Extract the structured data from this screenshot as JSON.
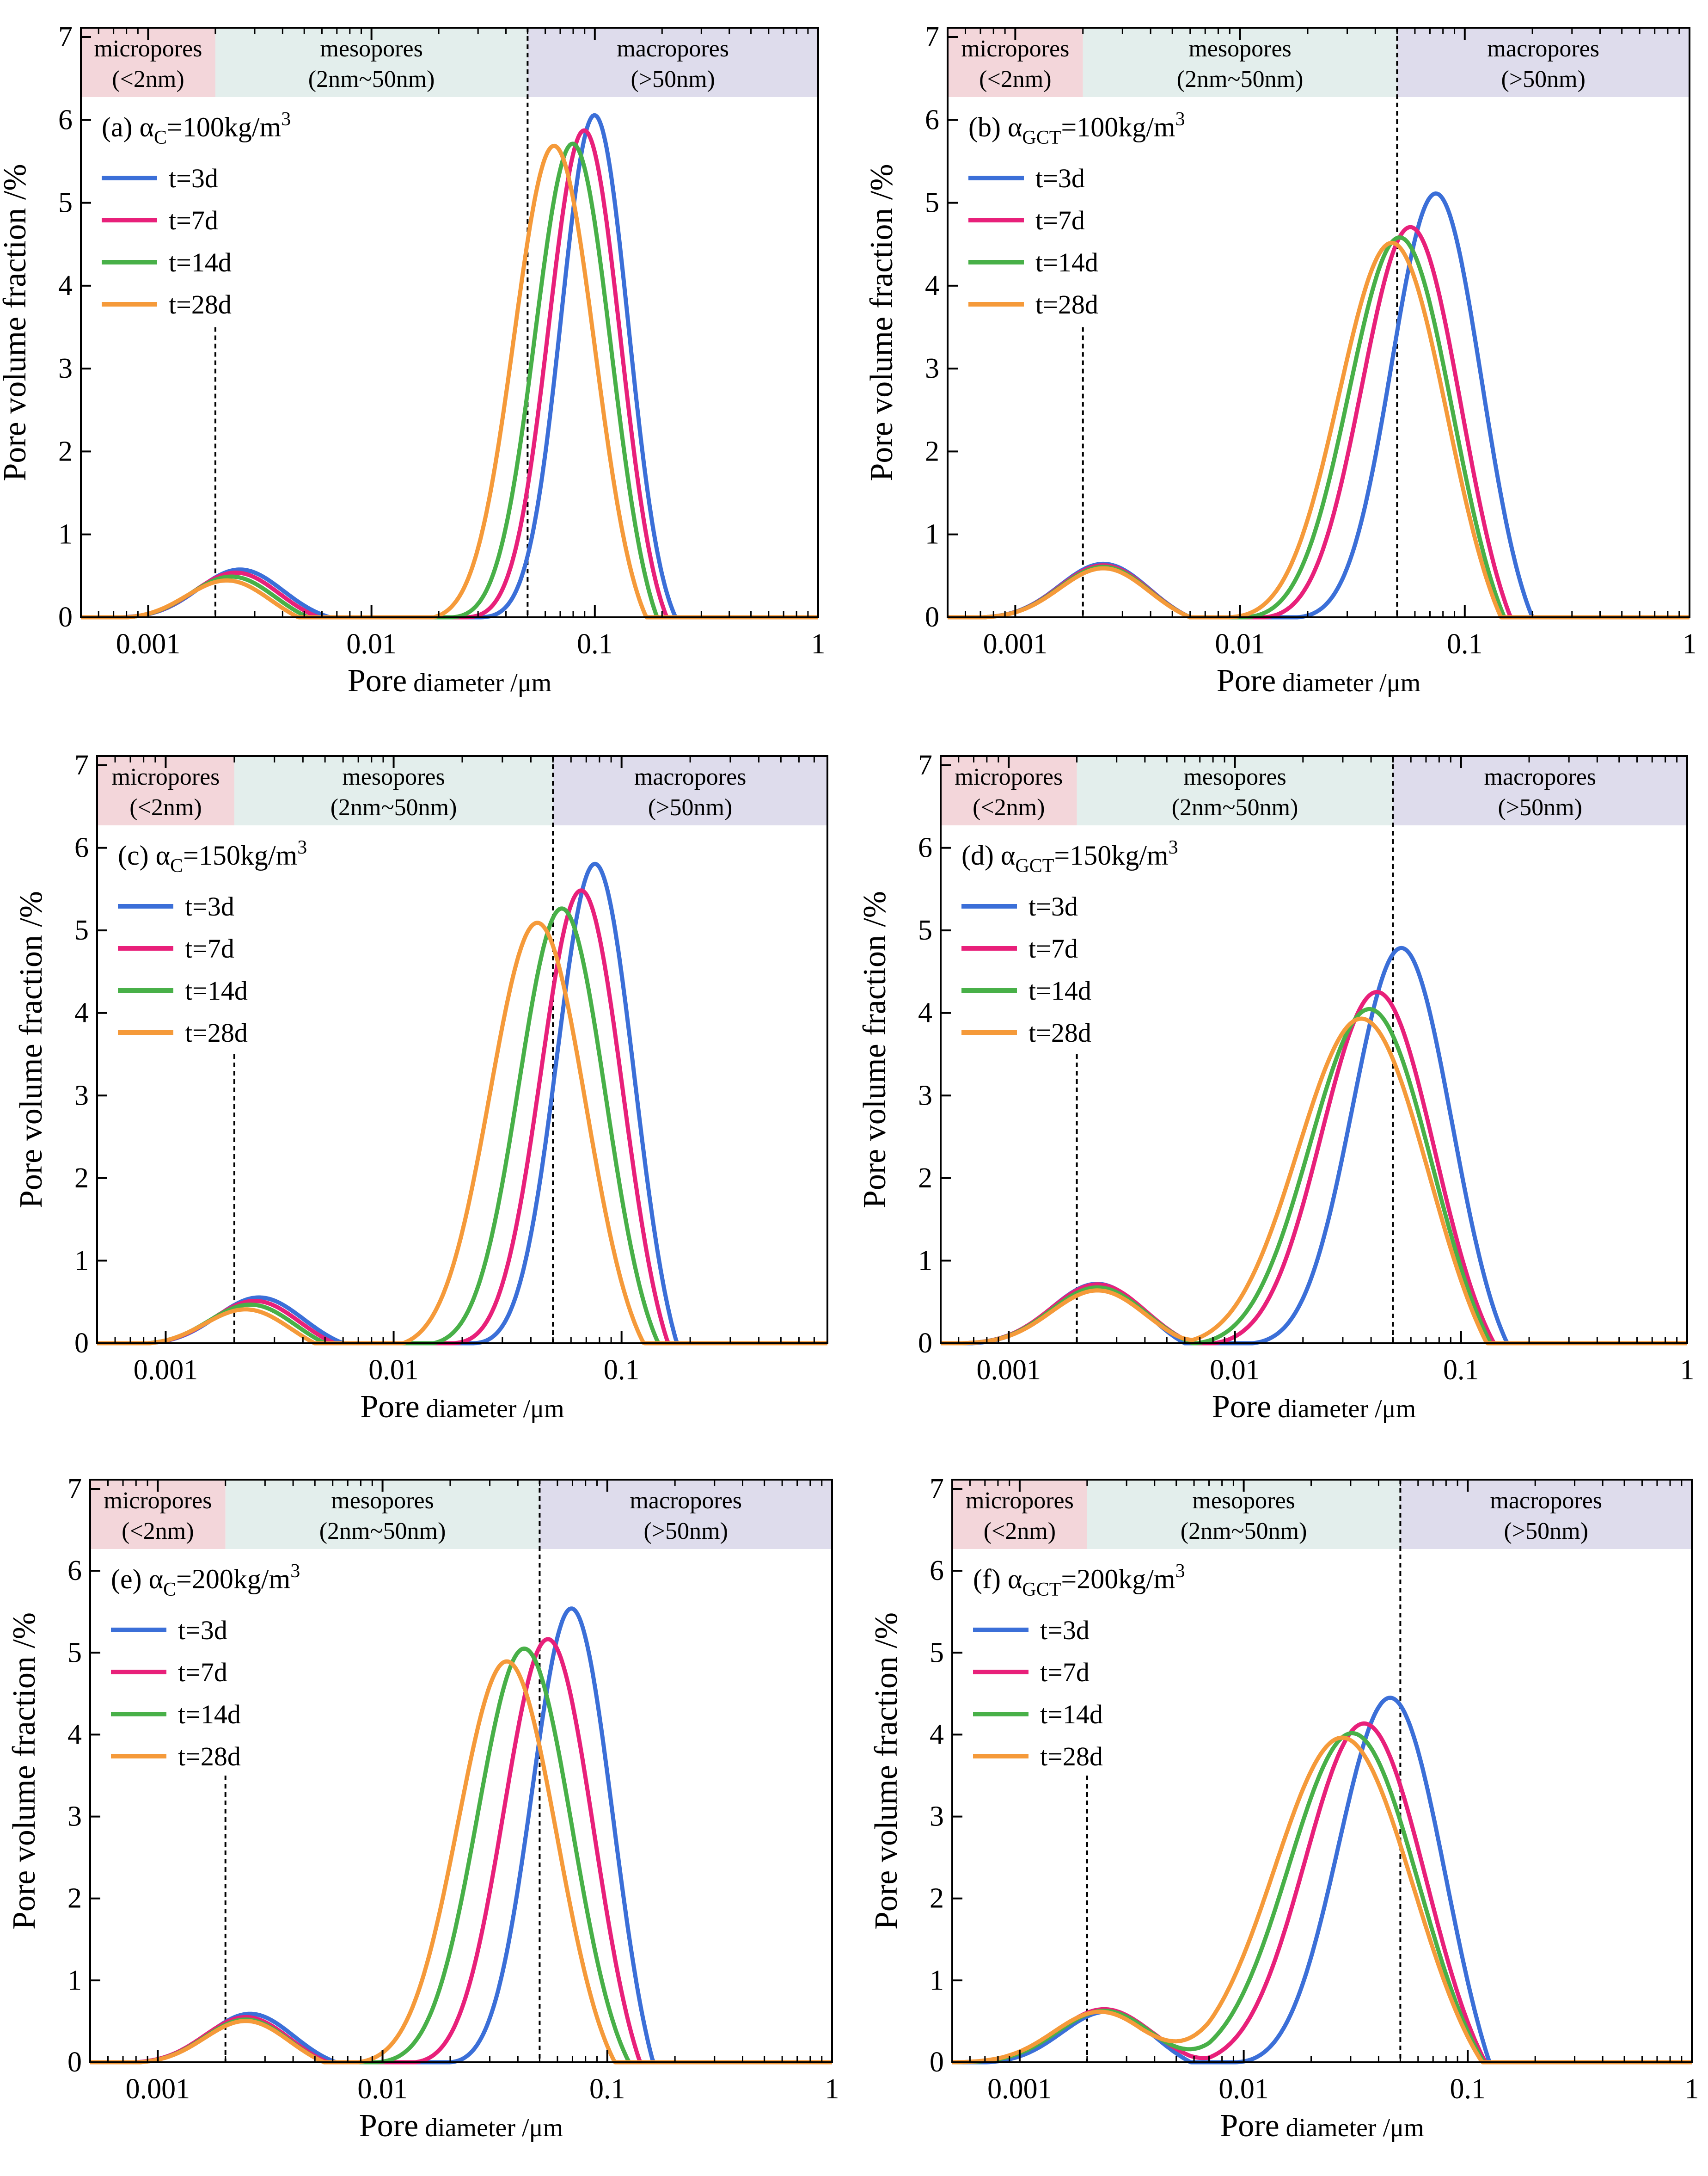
{
  "chart_data": [
    {
      "type": "line",
      "panel": "(a)",
      "annotation": {
        "prefix": "(a) ",
        "greek": "α",
        "sub": "C",
        "value": "=100kg/m",
        "sup": "3"
      },
      "xlabel": {
        "main": "Pore",
        "small": " diameter /μm"
      },
      "ylabel": "Pore volume fraction /%",
      "x_scale": "log",
      "xlim": [
        0.0005,
        1
      ],
      "ylim": [
        0,
        7
      ],
      "x_ticks": [
        0.001,
        0.01,
        0.1,
        1
      ],
      "x_tick_labels": [
        "0.001",
        "0.01",
        "0.1",
        "1"
      ],
      "y_ticks": [
        0,
        1,
        2,
        3,
        4,
        5,
        6,
        7
      ],
      "y_tick_labels": [
        "0",
        "1",
        "2",
        "3",
        "4",
        "5",
        "6",
        "7"
      ],
      "regions": [
        {
          "line1": "micropores",
          "line2": "(<2nm)",
          "from": 0.0005,
          "to": 0.002,
          "color": "#f3d6da"
        },
        {
          "line1": "mesopores",
          "line2": "(2nm~50nm)",
          "from": 0.002,
          "to": 0.05,
          "color": "#e3eeec"
        },
        {
          "line1": "macropores",
          "line2": "(>50nm)",
          "from": 0.05,
          "to": 1,
          "color": "#dedcec"
        }
      ],
      "divider_x": [
        0.002,
        0.05
      ],
      "series": [
        {
          "name": "t=3d",
          "color": "#3b6fd8",
          "p1": {
            "c": 0.0026,
            "a": 0.62,
            "s": 0.19,
            "lo": 0.0005,
            "hi": 0.0065
          },
          "p2": {
            "c": 0.1,
            "a": 6.25,
            "s": 0.15,
            "lo": 0.03,
            "hi": 0.23
          }
        },
        {
          "name": "t=7d",
          "color": "#e8207a",
          "p1": {
            "c": 0.0025,
            "a": 0.6,
            "s": 0.19,
            "lo": 0.0005,
            "hi": 0.0058
          },
          "p2": {
            "c": 0.09,
            "a": 6.12,
            "s": 0.16,
            "lo": 0.026,
            "hi": 0.21
          }
        },
        {
          "name": "t=14d",
          "color": "#48b048",
          "p1": {
            "c": 0.0024,
            "a": 0.57,
            "s": 0.19,
            "lo": 0.0005,
            "hi": 0.0052
          },
          "p2": {
            "c": 0.08,
            "a": 6.0,
            "s": 0.17,
            "lo": 0.023,
            "hi": 0.19
          }
        },
        {
          "name": "t=28d",
          "color": "#f59a3a",
          "p1": {
            "c": 0.0023,
            "a": 0.54,
            "s": 0.19,
            "lo": 0.0005,
            "hi": 0.0047
          },
          "p2": {
            "c": 0.066,
            "a": 5.9,
            "s": 0.18,
            "lo": 0.019,
            "hi": 0.17
          }
        }
      ]
    },
    {
      "type": "line",
      "panel": "(b)",
      "annotation": {
        "prefix": "(b) ",
        "greek": "α",
        "sub": "GCT",
        "value": "=100kg/m",
        "sup": "3"
      },
      "xlabel": {
        "main": "Pore",
        "small": " diameter /μm"
      },
      "ylabel": "Pore volume fraction /%",
      "x_scale": "log",
      "xlim": [
        0.0005,
        1
      ],
      "ylim": [
        0,
        7
      ],
      "x_ticks": [
        0.001,
        0.01,
        0.1,
        1
      ],
      "x_tick_labels": [
        "0.001",
        "0.01",
        "0.1",
        "1"
      ],
      "y_ticks": [
        0,
        1,
        2,
        3,
        4,
        5,
        6,
        7
      ],
      "y_tick_labels": [
        "0",
        "1",
        "2",
        "3",
        "4",
        "5",
        "6",
        "7"
      ],
      "regions": [
        {
          "line1": "micropores",
          "line2": "(<2nm)",
          "from": 0.0005,
          "to": 0.002,
          "color": "#f3d6da"
        },
        {
          "line1": "mesopores",
          "line2": "(2nm~50nm)",
          "from": 0.002,
          "to": 0.05,
          "color": "#e3eeec"
        },
        {
          "line1": "macropores",
          "line2": "(>50nm)",
          "from": 0.05,
          "to": 1,
          "color": "#dedcec"
        }
      ],
      "divider_x": [
        0.002,
        0.05
      ],
      "series": [
        {
          "name": "t=3d",
          "color": "#3b6fd8",
          "p1": {
            "c": 0.0025,
            "a": 0.72,
            "s": 0.2,
            "lo": 0.0005,
            "hi": 0.006
          },
          "p2": {
            "c": 0.075,
            "a": 5.42,
            "s": 0.2,
            "lo": 0.018,
            "hi": 0.2
          }
        },
        {
          "name": "t=7d",
          "color": "#e8207a",
          "p1": {
            "c": 0.0025,
            "a": 0.7,
            "s": 0.2,
            "lo": 0.0005,
            "hi": 0.006
          },
          "p2": {
            "c": 0.058,
            "a": 5.12,
            "s": 0.22,
            "lo": 0.011,
            "hi": 0.16
          }
        },
        {
          "name": "t=14d",
          "color": "#48b048",
          "p1": {
            "c": 0.0025,
            "a": 0.68,
            "s": 0.2,
            "lo": 0.0005,
            "hi": 0.006
          },
          "p2": {
            "c": 0.052,
            "a": 4.98,
            "s": 0.23,
            "lo": 0.0095,
            "hi": 0.15
          }
        },
        {
          "name": "t=28d",
          "color": "#f59a3a",
          "p1": {
            "c": 0.0025,
            "a": 0.66,
            "s": 0.2,
            "lo": 0.0005,
            "hi": 0.006
          },
          "p2": {
            "c": 0.048,
            "a": 4.9,
            "s": 0.24,
            "lo": 0.0085,
            "hi": 0.145
          }
        }
      ]
    },
    {
      "type": "line",
      "panel": "(c)",
      "annotation": {
        "prefix": "(c) ",
        "greek": "α",
        "sub": "C",
        "value": "=150kg/m",
        "sup": "3"
      },
      "xlabel": {
        "main": "Pore",
        "small": " diameter /μm"
      },
      "ylabel": "Pore volume fraction /%",
      "x_scale": "log",
      "xlim": [
        0.0005,
        0.8
      ],
      "ylim": [
        0,
        7
      ],
      "x_ticks": [
        0.001,
        0.01,
        0.1
      ],
      "x_tick_labels": [
        "0.001",
        "0.01",
        "0.1"
      ],
      "y_ticks": [
        0,
        1,
        2,
        3,
        4,
        5,
        6,
        7
      ],
      "y_tick_labels": [
        "0",
        "1",
        "2",
        "3",
        "4",
        "5",
        "6",
        "7"
      ],
      "regions": [
        {
          "line1": "micropores",
          "line2": "(<2nm)",
          "from": 0.0005,
          "to": 0.002,
          "color": "#f3d6da"
        },
        {
          "line1": "mesopores",
          "line2": "(2nm~50nm)",
          "from": 0.002,
          "to": 0.05,
          "color": "#e3eeec"
        },
        {
          "line1": "macropores",
          "line2": "(>50nm)",
          "from": 0.05,
          "to": 0.8,
          "color": "#dedcec"
        }
      ],
      "divider_x": [
        0.002,
        0.05
      ],
      "series": [
        {
          "name": "t=3d",
          "color": "#3b6fd8",
          "p1": {
            "c": 0.0026,
            "a": 0.62,
            "s": 0.19,
            "lo": 0.0005,
            "hi": 0.006
          },
          "p2": {
            "c": 0.077,
            "a": 6.2,
            "s": 0.17,
            "lo": 0.022,
            "hi": 0.175
          }
        },
        {
          "name": "t=7d",
          "color": "#e8207a",
          "p1": {
            "c": 0.0025,
            "a": 0.59,
            "s": 0.19,
            "lo": 0.0005,
            "hi": 0.0055
          },
          "p2": {
            "c": 0.067,
            "a": 5.85,
            "s": 0.18,
            "lo": 0.018,
            "hi": 0.16
          }
        },
        {
          "name": "t=14d",
          "color": "#48b048",
          "p1": {
            "c": 0.0024,
            "a": 0.56,
            "s": 0.19,
            "lo": 0.0005,
            "hi": 0.005
          },
          "p2": {
            "c": 0.055,
            "a": 5.5,
            "s": 0.19,
            "lo": 0.015,
            "hi": 0.145
          }
        },
        {
          "name": "t=28d",
          "color": "#f59a3a",
          "p1": {
            "c": 0.0023,
            "a": 0.52,
            "s": 0.19,
            "lo": 0.0005,
            "hi": 0.0045
          },
          "p2": {
            "c": 0.043,
            "a": 5.3,
            "s": 0.21,
            "lo": 0.011,
            "hi": 0.125
          }
        }
      ]
    },
    {
      "type": "line",
      "panel": "(d)",
      "annotation": {
        "prefix": "(d) ",
        "greek": "α",
        "sub": "GCT",
        "value": "=150kg/m",
        "sup": "3"
      },
      "xlabel": {
        "main": "Pore",
        "small": " diameter /μm"
      },
      "ylabel": "Pore volume fraction /%",
      "x_scale": "log",
      "xlim": [
        0.0005,
        1
      ],
      "ylim": [
        0,
        7
      ],
      "x_ticks": [
        0.001,
        0.01,
        0.1,
        1
      ],
      "x_tick_labels": [
        "0.001",
        "0.01",
        "0.1",
        "1"
      ],
      "y_ticks": [
        0,
        1,
        2,
        3,
        4,
        5,
        6,
        7
      ],
      "y_tick_labels": [
        "0",
        "1",
        "2",
        "3",
        "4",
        "5",
        "6",
        "7"
      ],
      "regions": [
        {
          "line1": "micropores",
          "line2": "(<2nm)",
          "from": 0.0005,
          "to": 0.002,
          "color": "#f3d6da"
        },
        {
          "line1": "mesopores",
          "line2": "(2nm~50nm)",
          "from": 0.002,
          "to": 0.05,
          "color": "#e3eeec"
        },
        {
          "line1": "macropores",
          "line2": "(>50nm)",
          "from": 0.05,
          "to": 1,
          "color": "#dedcec"
        }
      ],
      "divider_x": [
        0.002,
        0.05
      ],
      "series": [
        {
          "name": "t=3d",
          "color": "#3b6fd8",
          "p1": {
            "c": 0.0025,
            "a": 0.82,
            "s": 0.21,
            "lo": 0.0005,
            "hi": 0.006
          },
          "p2": {
            "c": 0.055,
            "a": 5.08,
            "s": 0.22,
            "lo": 0.012,
            "hi": 0.16
          }
        },
        {
          "name": "t=7d",
          "color": "#e8207a",
          "p1": {
            "c": 0.0025,
            "a": 0.78,
            "s": 0.21,
            "lo": 0.0005,
            "hi": 0.0065
          },
          "p2": {
            "c": 0.043,
            "a": 4.6,
            "s": 0.25,
            "lo": 0.0058,
            "hi": 0.14
          }
        },
        {
          "name": "t=14d",
          "color": "#48b048",
          "p1": {
            "c": 0.0025,
            "a": 0.74,
            "s": 0.21,
            "lo": 0.0005,
            "hi": 0.0065
          },
          "p2": {
            "c": 0.04,
            "a": 4.45,
            "s": 0.27,
            "lo": 0.005,
            "hi": 0.135
          }
        },
        {
          "name": "t=28d",
          "color": "#f59a3a",
          "p1": {
            "c": 0.0025,
            "a": 0.7,
            "s": 0.21,
            "lo": 0.0005,
            "hi": 0.0065
          },
          "p2": {
            "c": 0.037,
            "a": 4.38,
            "s": 0.29,
            "lo": 0.0045,
            "hi": 0.13
          }
        }
      ]
    },
    {
      "type": "line",
      "panel": "(e)",
      "annotation": {
        "prefix": "(e) ",
        "greek": "α",
        "sub": "C",
        "value": "=200kg/m",
        "sup": "3"
      },
      "xlabel": {
        "main": "Pore",
        "small": " diameter /μm"
      },
      "ylabel": "Pore volume fraction /%",
      "x_scale": "log",
      "xlim": [
        0.0005,
        1
      ],
      "ylim": [
        0,
        7
      ],
      "x_ticks": [
        0.001,
        0.01,
        0.1,
        1
      ],
      "x_tick_labels": [
        "0.001",
        "0.01",
        "0.1",
        "1"
      ],
      "y_ticks": [
        0,
        1,
        2,
        3,
        4,
        5,
        6,
        7
      ],
      "y_tick_labels": [
        "0",
        "1",
        "2",
        "3",
        "4",
        "5",
        "6",
        "7"
      ],
      "regions": [
        {
          "line1": "micropores",
          "line2": "(<2nm)",
          "from": 0.0005,
          "to": 0.002,
          "color": "#f3d6da"
        },
        {
          "line1": "mesopores",
          "line2": "(2nm~50nm)",
          "from": 0.002,
          "to": 0.05,
          "color": "#e3eeec"
        },
        {
          "line1": "macropores",
          "line2": "(>50nm)",
          "from": 0.05,
          "to": 1,
          "color": "#dedcec"
        }
      ],
      "divider_x": [
        0.002,
        0.05
      ],
      "series": [
        {
          "name": "t=3d",
          "color": "#3b6fd8",
          "p1": {
            "c": 0.0026,
            "a": 0.65,
            "s": 0.19,
            "lo": 0.0005,
            "hi": 0.0062
          },
          "p2": {
            "c": 0.07,
            "a": 6.0,
            "s": 0.18,
            "lo": 0.02,
            "hi": 0.16
          }
        },
        {
          "name": "t=7d",
          "color": "#e8207a",
          "p1": {
            "c": 0.0025,
            "a": 0.62,
            "s": 0.19,
            "lo": 0.0005,
            "hi": 0.0057
          },
          "p2": {
            "c": 0.055,
            "a": 5.55,
            "s": 0.2,
            "lo": 0.014,
            "hi": 0.14
          }
        },
        {
          "name": "t=14d",
          "color": "#48b048",
          "p1": {
            "c": 0.0025,
            "a": 0.6,
            "s": 0.19,
            "lo": 0.0005,
            "hi": 0.0055
          },
          "p2": {
            "c": 0.043,
            "a": 5.3,
            "s": 0.21,
            "lo": 0.0095,
            "hi": 0.125
          }
        },
        {
          "name": "t=28d",
          "color": "#f59a3a",
          "p1": {
            "c": 0.0025,
            "a": 0.58,
            "s": 0.19,
            "lo": 0.0005,
            "hi": 0.0055
          },
          "p2": {
            "c": 0.036,
            "a": 5.15,
            "s": 0.22,
            "lo": 0.0078,
            "hi": 0.108
          }
        }
      ]
    },
    {
      "type": "line",
      "panel": "(f)",
      "annotation": {
        "prefix": "(f) ",
        "greek": "α",
        "sub": "GCT",
        "value": "=200kg/m",
        "sup": "3"
      },
      "xlabel": {
        "main": "Pore",
        "small": " diameter /μm"
      },
      "ylabel": "Pore volume fraction /%",
      "x_scale": "log",
      "xlim": [
        0.0005,
        1
      ],
      "ylim": [
        0,
        7
      ],
      "x_ticks": [
        0.001,
        0.01,
        0.1,
        1
      ],
      "x_tick_labels": [
        "0.001",
        "0.01",
        "0.1",
        "1"
      ],
      "y_ticks": [
        0,
        1,
        2,
        3,
        4,
        5,
        6,
        7
      ],
      "y_tick_labels": [
        "0",
        "1",
        "2",
        "3",
        "4",
        "5",
        "6",
        "7"
      ],
      "regions": [
        {
          "line1": "micropores",
          "line2": "(<2nm)",
          "from": 0.0005,
          "to": 0.002,
          "color": "#f3d6da"
        },
        {
          "line1": "mesopores",
          "line2": "(2nm~50nm)",
          "from": 0.002,
          "to": 0.05,
          "color": "#e3eeec"
        },
        {
          "line1": "macropores",
          "line2": "(>50nm)",
          "from": 0.05,
          "to": 1,
          "color": "#dedcec"
        }
      ],
      "divider_x": [
        0.002,
        0.05
      ],
      "series": [
        {
          "name": "t=3d",
          "color": "#3b6fd8",
          "p1": {
            "c": 0.0025,
            "a": 0.72,
            "s": 0.21,
            "lo": 0.0005,
            "hi": 0.0058
          },
          "p2": {
            "c": 0.046,
            "a": 5.02,
            "s": 0.24,
            "lo": 0.009,
            "hi": 0.125
          }
        },
        {
          "name": "t=7d",
          "color": "#e8207a",
          "p1": {
            "c": 0.0024,
            "a": 0.68,
            "s": 0.21,
            "lo": 0.0005,
            "hi": 0.007
          },
          "p2": {
            "c": 0.035,
            "a": 4.52,
            "s": 0.27,
            "lo": 0.0045,
            "hi": 0.12
          }
        },
        {
          "name": "t=14d",
          "color": "#48b048",
          "p1": {
            "c": 0.0024,
            "a": 0.66,
            "s": 0.21,
            "lo": 0.0005,
            "hi": 0.007
          },
          "p2": {
            "c": 0.031,
            "a": 4.35,
            "s": 0.29,
            "lo": 0.004,
            "hi": 0.118
          }
        },
        {
          "name": "t=28d",
          "color": "#f59a3a",
          "p1": {
            "c": 0.0023,
            "a": 0.64,
            "s": 0.21,
            "lo": 0.0005,
            "hi": 0.007
          },
          "p2": {
            "c": 0.028,
            "a": 4.28,
            "s": 0.31,
            "lo": 0.0035,
            "hi": 0.116
          }
        }
      ]
    }
  ]
}
